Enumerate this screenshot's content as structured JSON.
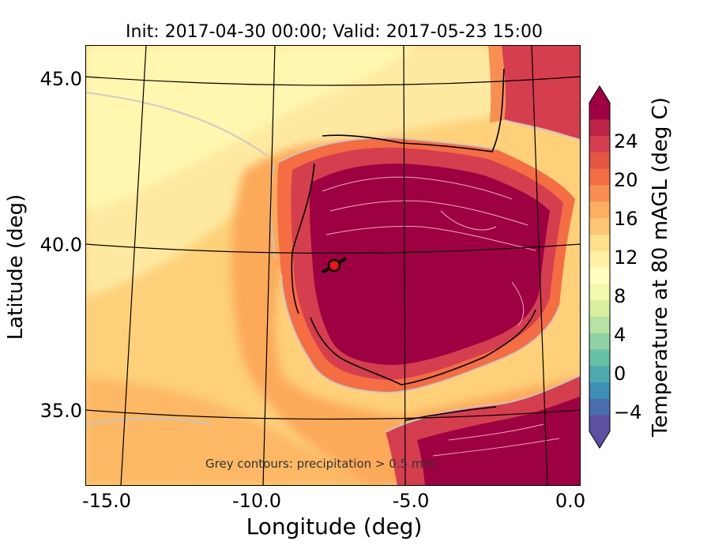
{
  "title": "Init: 2017-04-30 00:00; Valid: 2017-05-23 15:00",
  "x_axis": {
    "label": "Longitude (deg)",
    "range": [
      -16.0,
      0.2
    ],
    "ticks": [
      {
        "label": "-15.0",
        "value": -15.0
      },
      {
        "label": "-10.0",
        "value": -10.0
      },
      {
        "label": "-5.0",
        "value": -5.0
      },
      {
        "label": "0.0",
        "value": 0.0
      }
    ]
  },
  "y_axis": {
    "label": "Latitude (deg)",
    "range": [
      32.8,
      46.1
    ],
    "ticks": [
      {
        "label": "45.0",
        "value": 45.0
      },
      {
        "label": "40.0",
        "value": 40.0
      },
      {
        "label": "35.0",
        "value": 35.0
      }
    ]
  },
  "colorbar": {
    "label": "Temperature at 80 mAGL (deg C)",
    "range": [
      -6,
      28
    ],
    "extend": "both",
    "ticks": [
      {
        "label": "−4",
        "value": -4
      },
      {
        "label": "0",
        "value": 0
      },
      {
        "label": "4",
        "value": 4
      },
      {
        "label": "8",
        "value": 8
      },
      {
        "label": "12",
        "value": 12
      },
      {
        "label": "16",
        "value": 16
      },
      {
        "label": "20",
        "value": 20
      },
      {
        "label": "24",
        "value": 24
      }
    ],
    "colors": [
      "#5e4fa2",
      "#4a6fb0",
      "#3e8fb8",
      "#4fa9b1",
      "#66c2a5",
      "#8fd3a4",
      "#b6e3a1",
      "#d8ef9e",
      "#f2f9ad",
      "#fffebe",
      "#fff0a5",
      "#fee08b",
      "#fdc574",
      "#fdae61",
      "#f88e52",
      "#f46d43",
      "#e45641",
      "#d53e4f",
      "#bd2446",
      "#9e0142"
    ],
    "ocean_color": "#fdd88a"
  },
  "note": "Grey contours: precipitation > 0.5 mm",
  "marker": {
    "lon": -7.7,
    "lat": 39.35,
    "color": "#e8151b"
  }
}
